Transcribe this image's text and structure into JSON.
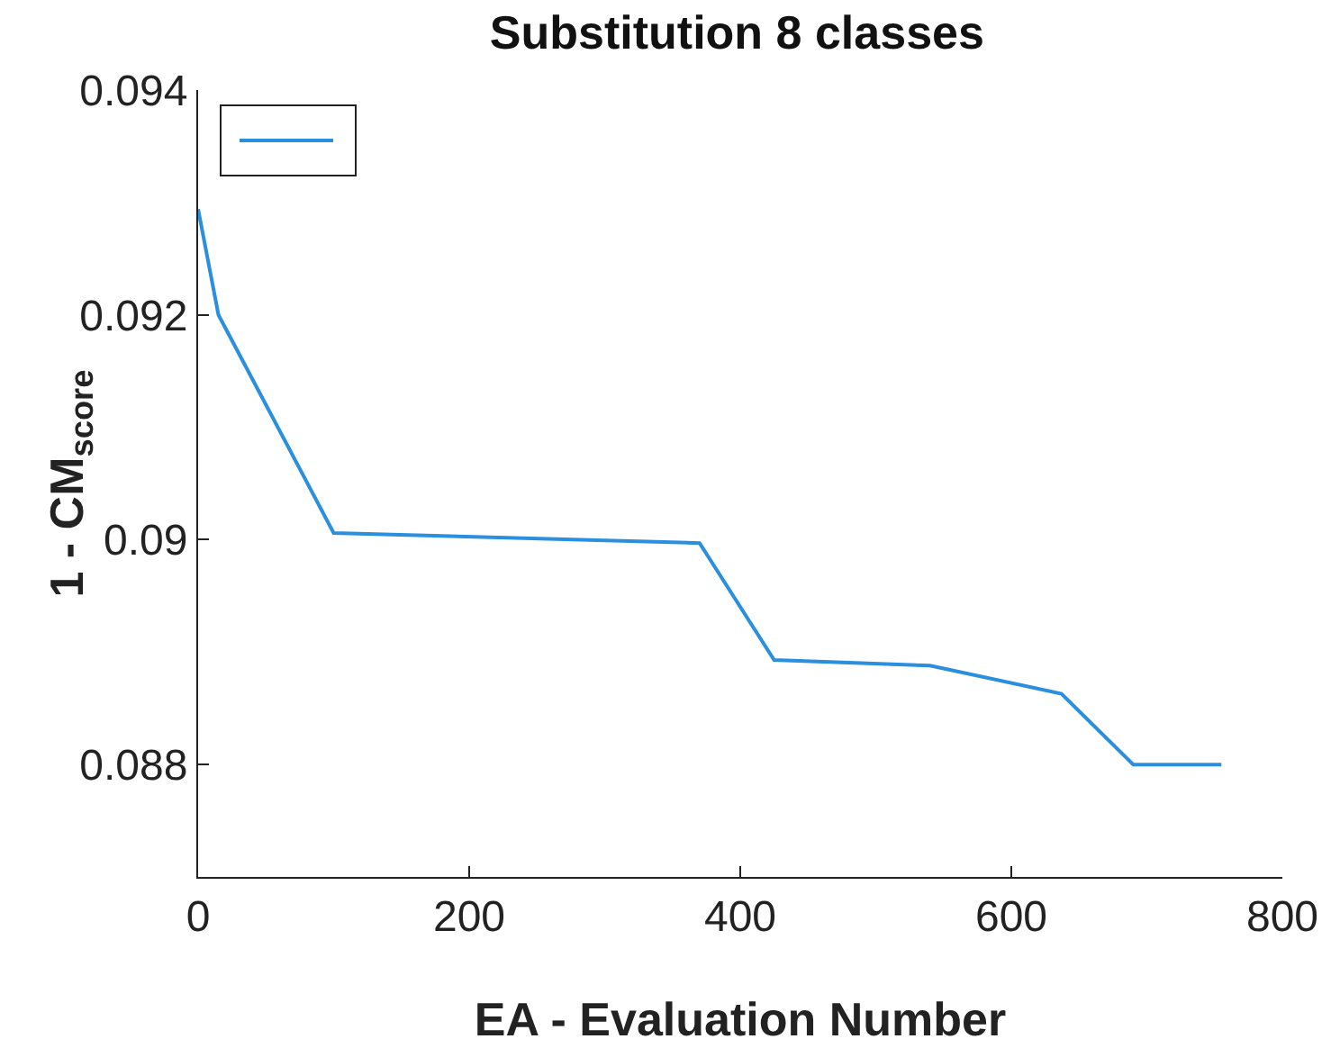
{
  "chart_data": {
    "type": "line",
    "title": "Substitution 8 classes",
    "xlabel": "EA - Evaluation Number",
    "ylabel": "1 - CM$_{score}$",
    "xlim": [
      0,
      800
    ],
    "xticks": [
      0,
      200,
      400,
      600,
      800
    ],
    "ylim": [
      0.087,
      0.094
    ],
    "yticks": [
      {
        "value": 0.088,
        "label": "0.088"
      },
      {
        "value": 0.09,
        "label": "0.09"
      },
      {
        "value": 0.092,
        "label": "0.092"
      },
      {
        "value": 0.094,
        "label": "0.094"
      }
    ],
    "grid": false,
    "marker": "none",
    "line_style": "solid",
    "series": [
      {
        "color": "#2b8fe0",
        "x": [
          0,
          15,
          100,
          370,
          425,
          540,
          637,
          690,
          755
        ],
        "values": [
          0.09294,
          0.092,
          0.09006,
          0.08997,
          0.08893,
          0.08888,
          0.08863,
          0.088,
          0.088
        ]
      }
    ]
  }
}
